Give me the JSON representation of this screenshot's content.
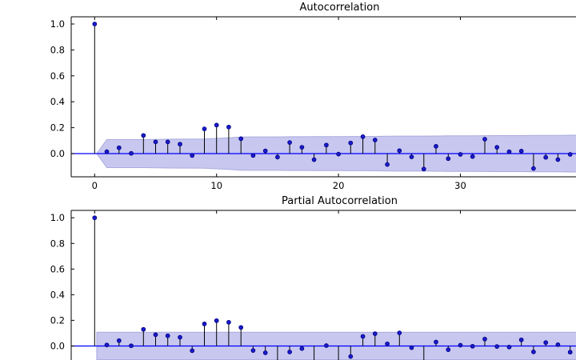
{
  "figure": {
    "background": "#ffffff",
    "colors": {
      "marker_fill": "#1b1bcf",
      "marker_edge": "#000080",
      "stem": "#000000",
      "zero_line": "#0000ff",
      "band_fill": "#c7c7f0",
      "band_edge": "#ababdf",
      "spine": "#000000",
      "text": "#000000"
    }
  },
  "chart_data": [
    {
      "id": "acf",
      "type": "stem",
      "title": "Autocorrelation",
      "xlabel": "",
      "ylabel": "",
      "grid": false,
      "legend": null,
      "xlim": [
        -2,
        42
      ],
      "ylim": [
        -0.18,
        1.06
      ],
      "x_ticks": [
        0,
        10,
        20,
        30
      ],
      "x_tick_labels": [
        "0",
        "10",
        "20",
        "30"
      ],
      "y_ticks": [
        0.0,
        0.2,
        0.4,
        0.6,
        0.8,
        1.0
      ],
      "y_tick_labels": [
        "0.0",
        "0.2",
        "0.4",
        "0.6",
        "0.8",
        "1.0"
      ],
      "lags": [
        0,
        1,
        2,
        3,
        4,
        5,
        6,
        7,
        8,
        9,
        10,
        11,
        12,
        13,
        14,
        15,
        16,
        17,
        18,
        19,
        20,
        21,
        22,
        23,
        24,
        25,
        26,
        27,
        28,
        29,
        30,
        31,
        32,
        33,
        34,
        35,
        36,
        37,
        38,
        39
      ],
      "values": [
        1.0,
        0.015,
        0.045,
        0.002,
        0.14,
        0.09,
        0.09,
        0.073,
        -0.015,
        0.191,
        0.22,
        0.205,
        0.115,
        -0.014,
        0.021,
        -0.027,
        0.086,
        0.049,
        -0.047,
        0.066,
        -0.004,
        0.082,
        0.13,
        0.105,
        -0.084,
        0.022,
        -0.025,
        -0.119,
        0.056,
        -0.039,
        -0.006,
        -0.023,
        0.111,
        0.049,
        0.014,
        0.019,
        -0.115,
        -0.029,
        -0.046,
        -0.006
      ],
      "ci_band": {
        "shape": "wedge",
        "start_lag": 0.17,
        "half_widths": [
          0.108,
          0.108,
          0.108,
          0.108,
          0.11,
          0.111,
          0.112,
          0.112,
          0.113,
          0.117,
          0.122,
          0.128,
          0.129,
          0.129,
          0.129,
          0.13,
          0.13,
          0.131,
          0.131,
          0.131,
          0.132,
          0.132,
          0.133,
          0.134,
          0.135,
          0.135,
          0.135,
          0.136,
          0.137,
          0.137,
          0.137,
          0.138,
          0.139,
          0.139,
          0.139,
          0.14,
          0.141,
          0.141,
          0.142
        ]
      }
    },
    {
      "id": "pacf",
      "type": "stem",
      "title": "Partial Autocorrelation",
      "xlabel": "",
      "ylabel": "",
      "grid": false,
      "legend": null,
      "xlim": [
        -2,
        42
      ],
      "ylim": [
        -0.11,
        1.06
      ],
      "x_ticks": [
        0,
        10,
        20,
        30
      ],
      "x_tick_labels": [],
      "y_ticks": [
        0.0,
        0.2,
        0.4,
        0.6,
        0.8,
        1.0
      ],
      "y_tick_labels": [
        "0.0",
        "0.2",
        "0.4",
        "0.6",
        "0.8",
        "1.0"
      ],
      "lags": [
        0,
        1,
        2,
        3,
        4,
        5,
        6,
        7,
        8,
        9,
        10,
        11,
        12,
        13,
        14,
        15,
        16,
        17,
        18,
        19,
        20,
        21,
        22,
        23,
        24,
        25,
        26,
        27,
        28,
        29,
        30,
        31,
        32,
        33,
        34,
        35,
        36,
        37,
        38,
        39
      ],
      "values": [
        1.0,
        0.008,
        0.042,
        0.002,
        0.13,
        0.088,
        0.08,
        0.068,
        -0.037,
        0.172,
        0.198,
        0.185,
        0.145,
        -0.035,
        -0.053,
        -0.14,
        -0.047,
        -0.02,
        -0.15,
        0.003,
        -0.13,
        -0.082,
        0.075,
        0.096,
        0.017,
        0.102,
        -0.013,
        -0.16,
        0.031,
        -0.029,
        0.006,
        -0.002,
        0.054,
        -0.004,
        -0.008,
        0.048,
        -0.046,
        0.027,
        0.01,
        -0.048
      ],
      "ci_band": {
        "shape": "rect",
        "start_lag": 0.17,
        "half_width": 0.107
      }
    }
  ]
}
